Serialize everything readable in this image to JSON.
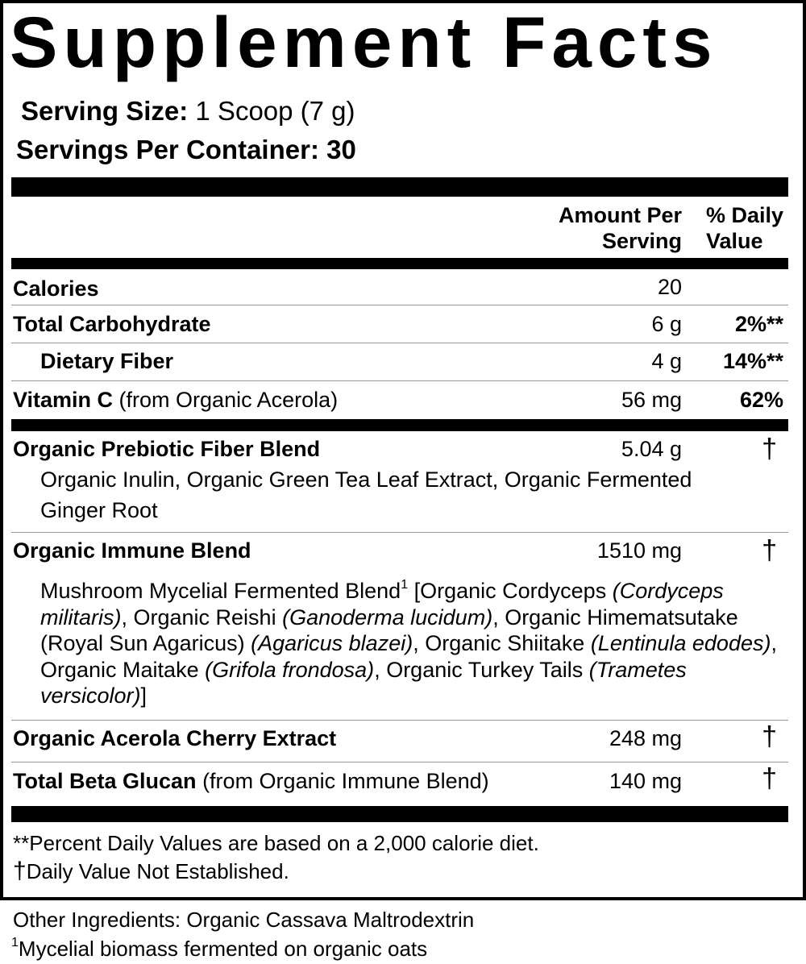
{
  "title": "Supplement Facts",
  "serving_size": {
    "label": "Serving Size:",
    "value": "1 Scoop (7 g)"
  },
  "servings_per_container": {
    "label": "Servings Per Container:",
    "value": "30"
  },
  "columns": {
    "amount": [
      "Amount Per",
      "Serving"
    ],
    "daily": [
      "% Daily",
      "Value"
    ]
  },
  "rows": [
    {
      "name": "Calories",
      "amount": "20"
    },
    {
      "name": "Total Carbohydrate",
      "amount": "6 g",
      "daily": "2%**"
    },
    {
      "name": "Dietary Fiber",
      "amount": "4 g",
      "daily": "14%**"
    },
    {
      "name": "Vitamin C",
      "note": "(from Organic Acerola)",
      "amount": "56 mg",
      "daily": "62%"
    }
  ],
  "blends": [
    {
      "name": "Organic Prebiotic Fiber Blend",
      "amount": "5.04 g",
      "daily": "†",
      "description": [
        {
          "text": "Organic Inulin, Organic Green Tea Leaf Extract, Organic Fermented Ginger Root"
        }
      ]
    },
    {
      "name": "Organic Immune Blend",
      "amount": "1510 mg",
      "daily": "†",
      "description": [
        {
          "text": "Mushroom Mycelial Fermented Blend"
        },
        {
          "text": "1",
          "superscript": true
        },
        {
          "text": " [Organic Cordyceps "
        },
        {
          "text": "(Cordyceps militaris)",
          "italic": true
        },
        {
          "text": ", Organic Reishi "
        },
        {
          "text": "(Ganoderma lucidum)",
          "italic": true
        },
        {
          "text": ", Organic Himematsutake (Royal Sun Agaricus) "
        },
        {
          "text": "(Agaricus blazei)",
          "italic": true
        },
        {
          "text": ", Organic Shiitake "
        },
        {
          "text": "(Lentinula edodes)",
          "italic": true
        },
        {
          "text": ", Organic Maitake "
        },
        {
          "text": "(Grifola frondosa)",
          "italic": true
        },
        {
          "text": ", Organic Turkey Tails "
        },
        {
          "text": "(Trametes versicolor)",
          "italic": true
        },
        {
          "text": "]"
        }
      ]
    },
    {
      "name": "Organic Acerola Cherry Extract",
      "amount": "248 mg",
      "daily": "†"
    },
    {
      "name": "Total Beta Glucan",
      "note": "(from Organic Immune Blend)",
      "amount": "140 mg",
      "daily": "†"
    }
  ],
  "footnotes": [
    "**Percent Daily Values are based on a 2,000 calorie diet.",
    {
      "symbol": "†",
      "text": "Daily Value Not Established."
    }
  ],
  "other_ingredients": "Other Ingredients: Organic Cassava Maltrodextrin",
  "ingredient_note": {
    "symbol": "1",
    "text": "Mycelial biomass fermented on organic oats"
  }
}
